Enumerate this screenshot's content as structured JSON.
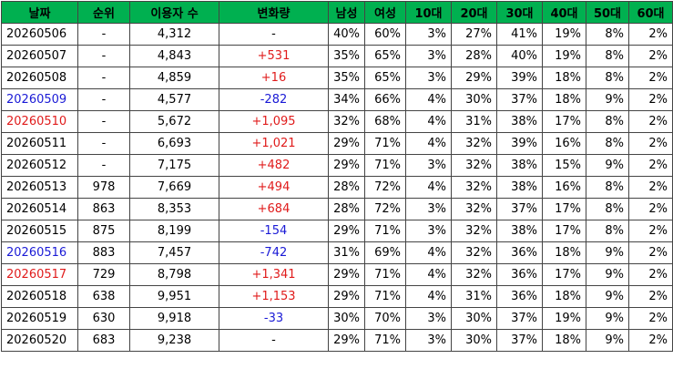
{
  "table": {
    "header": [
      "날짜",
      "순위",
      "이용자 수",
      "변화량",
      "남성",
      "여성",
      "10대",
      "20대",
      "30대",
      "40대",
      "50대",
      "60대"
    ],
    "rows": [
      [
        "20260506",
        "-",
        "4,312",
        "-",
        "40%",
        "60%",
        "3%",
        "27%",
        "41%",
        "19%",
        "8%",
        "2%"
      ],
      [
        "20260507",
        "-",
        "4,843",
        "+531",
        "35%",
        "65%",
        "3%",
        "28%",
        "40%",
        "19%",
        "8%",
        "2%"
      ],
      [
        "20260508",
        "-",
        "4,859",
        "+16",
        "35%",
        "65%",
        "3%",
        "29%",
        "39%",
        "18%",
        "8%",
        "2%"
      ],
      [
        "20260509",
        "-",
        "4,577",
        "-282",
        "34%",
        "66%",
        "4%",
        "30%",
        "37%",
        "18%",
        "9%",
        "2%"
      ],
      [
        "20260510",
        "-",
        "5,672",
        "+1,095",
        "32%",
        "68%",
        "4%",
        "31%",
        "38%",
        "17%",
        "8%",
        "2%"
      ],
      [
        "20260511",
        "-",
        "6,693",
        "+1,021",
        "29%",
        "71%",
        "4%",
        "32%",
        "39%",
        "16%",
        "8%",
        "2%"
      ],
      [
        "20260512",
        "-",
        "7,175",
        "+482",
        "29%",
        "71%",
        "3%",
        "32%",
        "38%",
        "15%",
        "9%",
        "2%"
      ],
      [
        "20260513",
        "978",
        "7,669",
        "+494",
        "28%",
        "72%",
        "4%",
        "32%",
        "38%",
        "16%",
        "8%",
        "2%"
      ],
      [
        "20260514",
        "863",
        "8,353",
        "+684",
        "28%",
        "72%",
        "3%",
        "32%",
        "37%",
        "17%",
        "8%",
        "2%"
      ],
      [
        "20260515",
        "875",
        "8,199",
        "-154",
        "29%",
        "71%",
        "3%",
        "32%",
        "38%",
        "17%",
        "8%",
        "2%"
      ],
      [
        "20260516",
        "883",
        "7,457",
        "-742",
        "31%",
        "69%",
        "4%",
        "32%",
        "36%",
        "18%",
        "9%",
        "2%"
      ],
      [
        "20260517",
        "729",
        "8,798",
        "+1,341",
        "29%",
        "71%",
        "4%",
        "32%",
        "36%",
        "17%",
        "9%",
        "2%"
      ],
      [
        "20260518",
        "638",
        "9,951",
        "+1,153",
        "29%",
        "71%",
        "4%",
        "31%",
        "36%",
        "18%",
        "9%",
        "2%"
      ],
      [
        "20260519",
        "630",
        "9,918",
        "-33",
        "30%",
        "70%",
        "3%",
        "30%",
        "37%",
        "19%",
        "9%",
        "2%"
      ],
      [
        "20260520",
        "683",
        "9,238",
        "-",
        "29%",
        "71%",
        "3%",
        "30%",
        "37%",
        "18%",
        "9%",
        "2%"
      ]
    ]
  }
}
